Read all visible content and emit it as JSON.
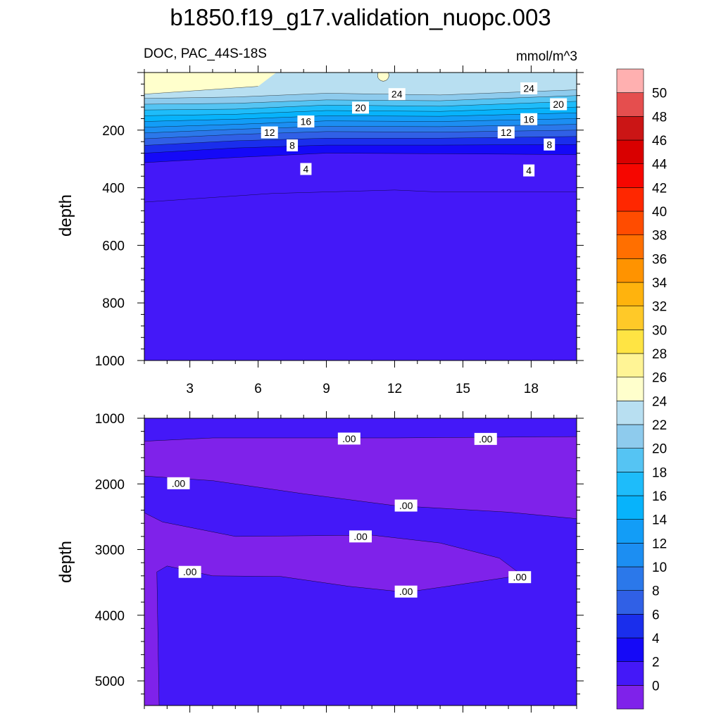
{
  "chart_data": {
    "type": "contour",
    "title": "b1850.f19_g17.validation_nuopc.003",
    "left_subtitle": "DOC, PAC_44S-18S",
    "right_subtitle": "mmol/m^3",
    "colorbar": {
      "levels": [
        0,
        2,
        4,
        6,
        8,
        10,
        12,
        14,
        16,
        18,
        20,
        22,
        24,
        26,
        28,
        30,
        32,
        34,
        36,
        38,
        40,
        42,
        44,
        46,
        48,
        50
      ],
      "labels": [
        "0",
        "2",
        "4",
        "6",
        "8",
        "10",
        "12",
        "14",
        "16",
        "18",
        "20",
        "22",
        "24",
        "26",
        "28",
        "30",
        "32",
        "34",
        "36",
        "38",
        "40",
        "42",
        "44",
        "46",
        "48",
        "50"
      ],
      "colors": [
        "#7f22ea",
        "#4418f8",
        "#1509f7",
        "#1a2eec",
        "#3060e6",
        "#2b78ea",
        "#1c8ef2",
        "#129df7",
        "#07b3fb",
        "#1ebcfa",
        "#55c4f3",
        "#8ecbed",
        "#b8dff1",
        "#ffffcc",
        "#fff495",
        "#ffe443",
        "#ffc928",
        "#ffb30d",
        "#ff9300",
        "#ff6f00",
        "#ff4c00",
        "#ff2700",
        "#f60600",
        "#d90000",
        "#cb1515",
        "#e54e4e",
        "#ffb0b0"
      ]
    },
    "panels": [
      {
        "name": "upper",
        "xlim": [
          1,
          20
        ],
        "ylim": [
          0,
          1000
        ],
        "y_reversed": true,
        "x_ticks": [
          3,
          6,
          9,
          12,
          15,
          18
        ],
        "x_tick_labels": [
          "3",
          "6",
          "9",
          "12",
          "15",
          "18"
        ],
        "y_ticks": [
          200,
          400,
          600,
          800,
          1000
        ],
        "y_tick_labels": [
          "200",
          "400",
          "600",
          "800",
          "1000"
        ],
        "ylabel": "depth",
        "base_value_interval": 1,
        "bands": [
          {
            "interval": 1,
            "top": [
              [
                1,
                450
              ],
              [
                6.6,
                420
              ],
              [
                12,
                408
              ],
              [
                14,
                415
              ],
              [
                20,
                415
              ]
            ]
          },
          {
            "interval": 2,
            "top": [
              [
                1,
                313
              ],
              [
                5,
                295
              ],
              [
                9,
                280
              ],
              [
                14,
                282
              ],
              [
                20,
                285
              ]
            ]
          },
          {
            "interval": 3,
            "top": [
              [
                1,
                280
              ],
              [
                5,
                262
              ],
              [
                9,
                252
              ],
              [
                14,
                252
              ],
              [
                20,
                250
              ]
            ]
          },
          {
            "interval": 4,
            "top": [
              [
                1,
                253
              ],
              [
                5,
                237
              ],
              [
                9,
                228
              ],
              [
                14,
                228
              ],
              [
                20,
                222
              ]
            ]
          },
          {
            "interval": 5,
            "top": [
              [
                1,
                230
              ],
              [
                5,
                215
              ],
              [
                9,
                205
              ],
              [
                14,
                207
              ],
              [
                20,
                200
              ]
            ]
          },
          {
            "interval": 6,
            "top": [
              [
                1,
                210
              ],
              [
                5,
                197
              ],
              [
                9,
                187
              ],
              [
                14,
                188
              ],
              [
                20,
                180
              ]
            ]
          },
          {
            "interval": 7,
            "top": [
              [
                1,
                190
              ],
              [
                5,
                180
              ],
              [
                9,
                168
              ],
              [
                14,
                170
              ],
              [
                20,
                160
              ]
            ]
          },
          {
            "interval": 8,
            "top": [
              [
                1,
                170
              ],
              [
                5,
                162
              ],
              [
                9,
                150
              ],
              [
                14,
                152
              ],
              [
                20,
                140
              ]
            ]
          },
          {
            "interval": 9,
            "top": [
              [
                1,
                150
              ],
              [
                5,
                145
              ],
              [
                9,
                132
              ],
              [
                14,
                135
              ],
              [
                20,
                120
              ]
            ]
          },
          {
            "interval": 10,
            "top": [
              [
                1,
                130
              ],
              [
                5,
                127
              ],
              [
                9,
                113
              ],
              [
                14,
                117
              ],
              [
                20,
                100
              ]
            ]
          },
          {
            "interval": 11,
            "top": [
              [
                1,
                110
              ],
              [
                5,
                107
              ],
              [
                9,
                95
              ],
              [
                14,
                98
              ],
              [
                20,
                80
              ]
            ]
          },
          {
            "interval": 12,
            "top": [
              [
                1,
                90
              ],
              [
                5,
                85
              ],
              [
                9,
                72
              ],
              [
                14,
                78
              ],
              [
                20,
                60
              ]
            ]
          },
          {
            "interval": 13,
            "top": [
              [
                1,
                75
              ],
              [
                6,
                48
              ],
              [
                6.8,
                0
              ]
            ]
          }
        ],
        "blobs": [
          {
            "interval": 13,
            "x": 11.5,
            "y": 10,
            "rx": 0.25,
            "ry": 20
          }
        ],
        "contour_labels": [
          {
            "text": "24",
            "x": 12.1,
            "y": 75
          },
          {
            "text": "24",
            "x": 17.9,
            "y": 55
          },
          {
            "text": "20",
            "x": 10.5,
            "y": 122
          },
          {
            "text": "20",
            "x": 19.2,
            "y": 110
          },
          {
            "text": "16",
            "x": 8.1,
            "y": 170
          },
          {
            "text": "16",
            "x": 17.9,
            "y": 162
          },
          {
            "text": "12",
            "x": 6.5,
            "y": 208
          },
          {
            "text": "12",
            "x": 16.9,
            "y": 208
          },
          {
            "text": "8",
            "x": 7.5,
            "y": 253
          },
          {
            "text": "8",
            "x": 18.8,
            "y": 250
          },
          {
            "text": "4",
            "x": 8.1,
            "y": 335
          },
          {
            "text": "4",
            "x": 17.9,
            "y": 340
          }
        ]
      },
      {
        "name": "lower",
        "xlim": [
          1,
          20
        ],
        "ylim": [
          1000,
          5375
        ],
        "y_reversed": true,
        "x_ticks": [
          3,
          6,
          9,
          12,
          15,
          18
        ],
        "x_tick_labels": [],
        "y_ticks": [
          1000,
          2000,
          3000,
          4000,
          5000
        ],
        "y_tick_labels": [
          "1000",
          "2000",
          "3000",
          "4000",
          "5000"
        ],
        "ylabel": "depth",
        "base_value_interval": 1,
        "regions": [
          {
            "interval": 0,
            "polygon": [
              [
                1,
                1350
              ],
              [
                4,
                1300
              ],
              [
                12,
                1300
              ],
              [
                20,
                1280
              ],
              [
                20,
                2530
              ],
              [
                17,
                2430
              ],
              [
                12,
                2330
              ],
              [
                8,
                2150
              ],
              [
                4,
                1950
              ],
              [
                1,
                1880
              ]
            ]
          },
          {
            "interval": 0,
            "polygon": [
              [
                1,
                2440
              ],
              [
                1.8,
                2580
              ],
              [
                5,
                2800
              ],
              [
                8,
                2790
              ],
              [
                11,
                2780
              ],
              [
                14,
                2900
              ],
              [
                16.6,
                3130
              ],
              [
                17.6,
                3390
              ],
              [
                14.5,
                3550
              ],
              [
                12.5,
                3650
              ],
              [
                10,
                3560
              ],
              [
                7,
                3410
              ],
              [
                4,
                3400
              ],
              [
                2,
                3250
              ],
              [
                1.55,
                3340
              ],
              [
                1.65,
                5375
              ],
              [
                1,
                5375
              ]
            ]
          }
        ],
        "contour_labels": [
          {
            "text": ".00",
            "x": 10.0,
            "y": 1310
          },
          {
            "text": ".00",
            "x": 16.0,
            "y": 1315
          },
          {
            "text": ".00",
            "x": 2.5,
            "y": 1990
          },
          {
            "text": ".00",
            "x": 12.5,
            "y": 2330
          },
          {
            "text": ".00",
            "x": 10.5,
            "y": 2800
          },
          {
            "text": ".00",
            "x": 3.0,
            "y": 3340
          },
          {
            "text": ".00",
            "x": 12.5,
            "y": 3640
          },
          {
            "text": ".00",
            "x": 17.5,
            "y": 3420
          }
        ]
      }
    ]
  }
}
